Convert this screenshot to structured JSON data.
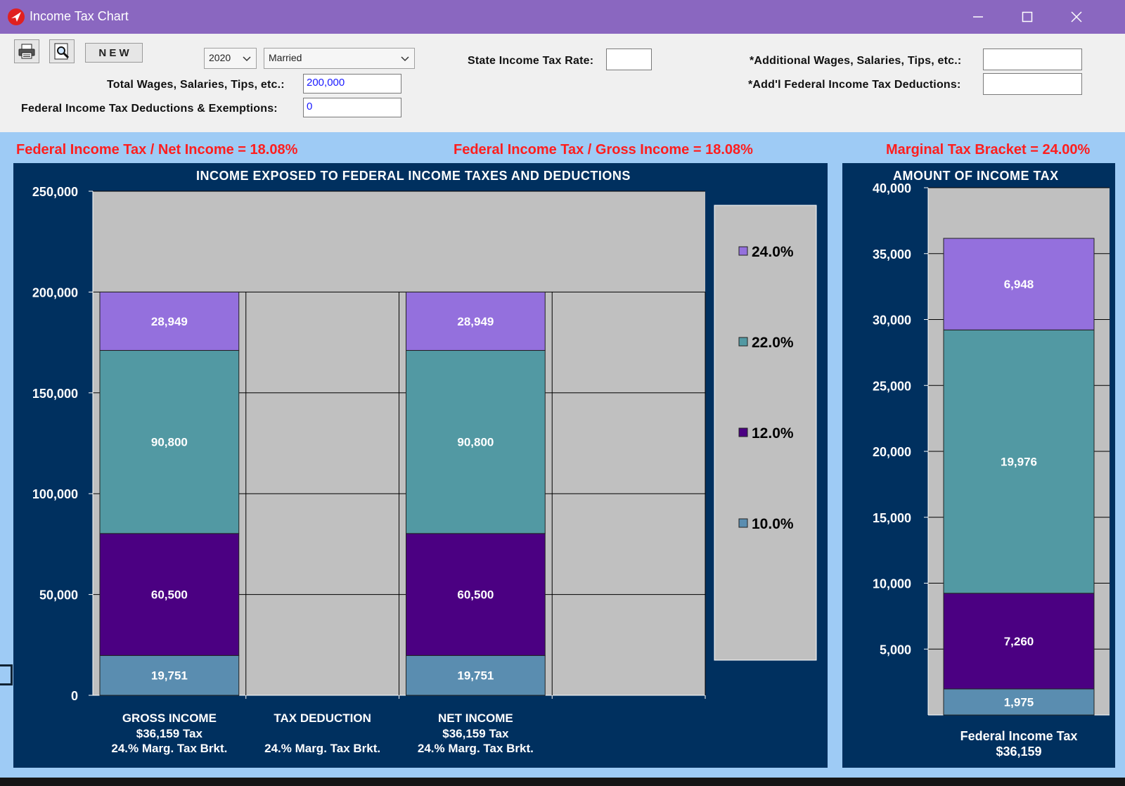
{
  "window": {
    "title": "Income Tax Chart"
  },
  "toolbar": {
    "new_label": "N E W",
    "year": "2020",
    "filing_status": "Married",
    "total_wages_label": "Total Wages, Salaries, Tips, etc.:",
    "total_wages_value": "200,000",
    "fed_deductions_label": "Federal Income Tax Deductions & Exemptions:",
    "fed_deductions_value": "0",
    "state_rate_label": "State Income Tax Rate:",
    "state_rate_value": "",
    "add_wages_label": "*Additional Wages, Salaries, Tips, etc.:",
    "add_wages_value": "",
    "add_fed_deductions_label": "*Add'l Federal Income Tax Deductions:",
    "add_fed_deductions_value": ""
  },
  "ratios": {
    "net": "Federal Income Tax / Net Income = 18.08%",
    "gross": "Federal Income Tax / Gross Income = 18.08%",
    "marginal": "Marginal Tax Bracket = 24.00%"
  },
  "colors": {
    "b10": "#5a8db0",
    "b12": "#4b0082",
    "b22": "#5299a3",
    "b24": "#9470dd",
    "plot_bg": "#c0c0c0",
    "panel_bg": "#00305f"
  },
  "chart_data": [
    {
      "type": "bar",
      "stacked": true,
      "title": "INCOME EXPOSED TO FEDERAL INCOME TAXES AND DEDUCTIONS",
      "categories": [
        "GROSS INCOME",
        "TAX DEDUCTION",
        "NET INCOME"
      ],
      "category_sublabels": [
        [
          "$36,159 Tax",
          "24.% Marg. Tax Brkt."
        ],
        [
          "",
          "24.% Marg. Tax Brkt."
        ],
        [
          "$36,159 Tax",
          "24.% Marg. Tax Brkt."
        ]
      ],
      "series": [
        {
          "name": "10.0%",
          "values": [
            19751,
            0,
            19751
          ],
          "labels": [
            "19,751",
            "",
            "19,751"
          ]
        },
        {
          "name": "12.0%",
          "values": [
            60500,
            0,
            60500
          ],
          "labels": [
            "60,500",
            "",
            "60,500"
          ]
        },
        {
          "name": "22.0%",
          "values": [
            90800,
            0,
            90800
          ],
          "labels": [
            "90,800",
            "",
            "90,800"
          ]
        },
        {
          "name": "24.0%",
          "values": [
            28949,
            0,
            28949
          ],
          "labels": [
            "28,949",
            "",
            "28,949"
          ]
        }
      ],
      "ylim": [
        0,
        250000
      ],
      "yticks": [
        0,
        50000,
        100000,
        150000,
        200000,
        250000
      ],
      "ytick_labels": [
        "0",
        "50,000",
        "100,000",
        "150,000",
        "200,000",
        "250,000"
      ],
      "legend": [
        "24.0%",
        "22.0%",
        "12.0%",
        "10.0%"
      ],
      "legend_position": "right"
    },
    {
      "type": "bar",
      "stacked": true,
      "title": "AMOUNT OF INCOME TAX",
      "categories": [
        "Federal Income Tax"
      ],
      "category_sublabels": [
        [
          "$36,159"
        ]
      ],
      "series": [
        {
          "name": "10.0%",
          "values": [
            1975
          ],
          "labels": [
            "1,975"
          ]
        },
        {
          "name": "12.0%",
          "values": [
            7260
          ],
          "labels": [
            "7,260"
          ]
        },
        {
          "name": "22.0%",
          "values": [
            19976
          ],
          "labels": [
            "19,976"
          ]
        },
        {
          "name": "24.0%",
          "values": [
            6948
          ],
          "labels": [
            "6,948"
          ]
        }
      ],
      "ylim": [
        0,
        40000
      ],
      "yticks": [
        5000,
        10000,
        15000,
        20000,
        25000,
        30000,
        35000,
        40000
      ],
      "ytick_labels": [
        "5,000",
        "10,000",
        "15,000",
        "20,000",
        "25,000",
        "30,000",
        "35,000",
        "40,000"
      ]
    }
  ]
}
